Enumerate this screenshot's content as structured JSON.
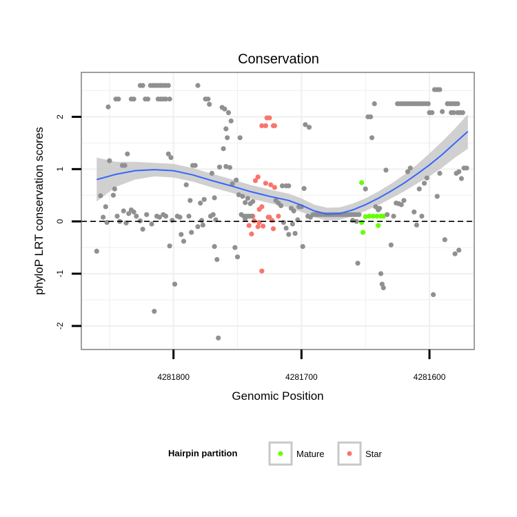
{
  "chart_data": {
    "type": "scatter",
    "title": "Conservation",
    "xlabel": "Genomic Position",
    "ylabel": "phyloP LRT conservation scores",
    "x_reversed": true,
    "xlim": [
      4281872,
      4281565
    ],
    "ylim": [
      -2.45,
      2.85
    ],
    "x_ticks": [
      4281800,
      4281700,
      4281600
    ],
    "x_tick_labels": [
      "4281800",
      "4281700",
      "4281600"
    ],
    "y_ticks": [
      -2,
      -1,
      0,
      1,
      2
    ],
    "y_tick_labels": [
      "-2",
      "-1",
      "0",
      "1",
      "2"
    ],
    "reference_line": {
      "y": 0,
      "style": "dashed"
    },
    "legend": {
      "title": "Hairpin partition",
      "position": "bottom",
      "entries": [
        {
          "name": "Mature",
          "color": "#66ff00"
        },
        {
          "name": "Star",
          "color": "#f8766d"
        }
      ]
    },
    "colors": {
      "other": "#909090",
      "Mature": "#66ff00",
      "Star": "#f8766d",
      "smooth_line": "#3366ff",
      "smooth_band": "#c8c8c8",
      "panel_background": "#ffffff",
      "grid": "#f0f0f0",
      "frame": "#7f7f7f"
    },
    "smooth": {
      "x": [
        4281860,
        4281845,
        4281830,
        4281815,
        4281800,
        4281785,
        4281770,
        4281755,
        4281740,
        4281725,
        4281710,
        4281700,
        4281690,
        4281680,
        4281670,
        4281660,
        4281650,
        4281640,
        4281630,
        4281620,
        4281610,
        4281600,
        4281590,
        4281580,
        4281570
      ],
      "y": [
        0.8,
        0.9,
        0.97,
        0.99,
        0.97,
        0.89,
        0.78,
        0.68,
        0.57,
        0.48,
        0.4,
        0.31,
        0.2,
        0.14,
        0.15,
        0.22,
        0.32,
        0.44,
        0.58,
        0.73,
        0.9,
        1.08,
        1.28,
        1.5,
        1.72
      ],
      "upper": [
        1.22,
        1.14,
        1.14,
        1.12,
        1.1,
        1.02,
        0.91,
        0.81,
        0.7,
        0.61,
        0.53,
        0.44,
        0.32,
        0.26,
        0.27,
        0.34,
        0.44,
        0.57,
        0.72,
        0.89,
        1.08,
        1.3,
        1.53,
        1.78,
        2.05
      ],
      "lower": [
        0.38,
        0.66,
        0.8,
        0.86,
        0.84,
        0.76,
        0.65,
        0.55,
        0.44,
        0.35,
        0.27,
        0.18,
        0.08,
        0.02,
        0.03,
        0.1,
        0.2,
        0.31,
        0.44,
        0.57,
        0.72,
        0.86,
        1.03,
        1.22,
        1.39
      ]
    },
    "series": [
      {
        "name": "Mature",
        "points": [
          [
            4281653,
            0.74
          ],
          [
            4281653,
            -0.02
          ],
          [
            4281652,
            -0.21
          ],
          [
            4281650,
            0.09
          ],
          [
            4281647,
            0.1
          ],
          [
            4281644,
            0.1
          ],
          [
            4281641,
            0.1
          ],
          [
            4281638,
            0.1
          ],
          [
            4281636,
            0.1
          ],
          [
            4281640,
            -0.08
          ]
        ]
      },
      {
        "name": "Star",
        "points": [
          [
            4281731,
            1.83
          ],
          [
            4281728,
            1.83
          ],
          [
            4281727,
            1.98
          ],
          [
            4281725,
            1.98
          ],
          [
            4281722,
            1.83
          ],
          [
            4281721,
            1.83
          ],
          [
            4281728,
            0.73
          ],
          [
            4281724,
            0.7
          ],
          [
            4281721,
            0.65
          ],
          [
            4281734,
            0.85
          ],
          [
            4281736,
            0.78
          ],
          [
            4281731,
            0.28
          ],
          [
            4281733,
            0.23
          ],
          [
            4281738,
            0.1
          ],
          [
            4281726,
            0.08
          ],
          [
            4281737,
            0.01
          ],
          [
            4281734,
            -0.1
          ],
          [
            4281741,
            -0.08
          ],
          [
            4281739,
            -0.24
          ],
          [
            4281730,
            -0.09
          ],
          [
            4281733,
            -0.02
          ],
          [
            4281723,
            0.02
          ],
          [
            4281725,
            0.08
          ],
          [
            4281722,
            -0.14
          ],
          [
            4281731,
            -0.95
          ],
          [
            4281718,
            0.1
          ]
        ]
      },
      {
        "name": "",
        "points": [
          [
            4281860,
            -0.57
          ],
          [
            4281857,
            0.49
          ],
          [
            4281855,
            0.08
          ],
          [
            4281853,
            0.28
          ],
          [
            4281852,
            -0.02
          ],
          [
            4281850,
            1.16
          ],
          [
            4281851,
            2.19
          ],
          [
            4281847,
            0.5
          ],
          [
            4281845,
            2.34
          ],
          [
            4281843,
            2.34
          ],
          [
            4281846,
            0.62
          ],
          [
            4281844,
            0.1
          ],
          [
            4281842,
            0.0
          ],
          [
            4281840,
            1.07
          ],
          [
            4281838,
            1.07
          ],
          [
            4281836,
            1.29
          ],
          [
            4281839,
            0.2
          ],
          [
            4281837,
            -0.03
          ],
          [
            4281835,
            0.15
          ],
          [
            4281833,
            2.34
          ],
          [
            4281831,
            2.34
          ],
          [
            4281833,
            0.22
          ],
          [
            4281831,
            0.18
          ],
          [
            4281829,
            0.1
          ],
          [
            4281826,
            2.6
          ],
          [
            4281824,
            2.6
          ],
          [
            4281822,
            2.34
          ],
          [
            4281820,
            2.34
          ],
          [
            4281826,
            0.01
          ],
          [
            4281824,
            -0.15
          ],
          [
            4281821,
            0.13
          ],
          [
            4281818,
            2.6
          ],
          [
            4281816,
            2.6
          ],
          [
            4281814,
            2.6
          ],
          [
            4281812,
            2.6
          ],
          [
            4281810,
            2.6
          ],
          [
            4281808,
            2.6
          ],
          [
            4281806,
            2.6
          ],
          [
            4281804,
            2.6
          ],
          [
            4281812,
            2.34
          ],
          [
            4281810,
            2.34
          ],
          [
            4281808,
            2.34
          ],
          [
            4281806,
            2.34
          ],
          [
            4281803,
            2.34
          ],
          [
            4281817,
            -0.05
          ],
          [
            4281815,
            -1.72
          ],
          [
            4281813,
            0.1
          ],
          [
            4281811,
            0.08
          ],
          [
            4281808,
            0.13
          ],
          [
            4281806,
            0.1
          ],
          [
            4281804,
            1.29
          ],
          [
            4281802,
            1.22
          ],
          [
            4281803,
            -0.47
          ],
          [
            4281801,
            0.02
          ],
          [
            4281799,
            -1.2
          ],
          [
            4281797,
            0.1
          ],
          [
            4281795,
            0.08
          ],
          [
            4281794,
            -0.25
          ],
          [
            4281792,
            -0.38
          ],
          [
            4281790,
            0.7
          ],
          [
            4281788,
            0.1
          ],
          [
            4281787,
            0.4
          ],
          [
            4281786,
            -0.21
          ],
          [
            4281785,
            1.07
          ],
          [
            4281783,
            1.07
          ],
          [
            4281781,
            -0.1
          ],
          [
            4281781,
            2.6
          ],
          [
            4281779,
            0.35
          ],
          [
            4281778,
            0.02
          ],
          [
            4281777,
            -0.07
          ],
          [
            4281776,
            0.42
          ],
          [
            4281775,
            2.34
          ],
          [
            4281773,
            2.34
          ],
          [
            4281772,
            2.24
          ],
          [
            4281771,
            0.1
          ],
          [
            4281769,
            0.13
          ],
          [
            4281770,
            0.92
          ],
          [
            4281768,
            0.45
          ],
          [
            4281767,
            0.03
          ],
          [
            4281768,
            -0.48
          ],
          [
            4281766,
            -0.73
          ],
          [
            4281765,
            -2.23
          ],
          [
            4281764,
            1.04
          ],
          [
            4281762,
            2.18
          ],
          [
            4281760,
            2.15
          ],
          [
            4281759,
            1.77
          ],
          [
            4281758,
            1.6
          ],
          [
            4281757,
            2.08
          ],
          [
            4281755,
            1.92
          ],
          [
            4281761,
            1.39
          ],
          [
            4281759,
            1.05
          ],
          [
            4281756,
            1.03
          ],
          [
            4281754,
            0.72
          ],
          [
            4281751,
            0.79
          ],
          [
            4281749,
            0.51
          ],
          [
            4281752,
            -0.5
          ],
          [
            4281750,
            -0.68
          ],
          [
            4281748,
            1.6
          ],
          [
            4281747,
            0.13
          ],
          [
            4281745,
            0.1
          ],
          [
            4281743,
            0.1
          ],
          [
            4281741,
            0.1
          ],
          [
            4281739,
            0.1
          ],
          [
            4281744,
            0.05
          ],
          [
            4281742,
            0.44
          ],
          [
            4281740,
            0.34
          ],
          [
            4281738,
            0.38
          ],
          [
            4281746,
            0.48
          ],
          [
            4281744,
            0.36
          ],
          [
            4281720,
            0.4
          ],
          [
            4281718,
            0.35
          ],
          [
            4281716,
            0.3
          ],
          [
            4281715,
            0.68
          ],
          [
            4281712,
            0.68
          ],
          [
            4281710,
            0.68
          ],
          [
            4281714,
            -0.02
          ],
          [
            4281712,
            -0.13
          ],
          [
            4281710,
            -0.25
          ],
          [
            4281708,
            0.25
          ],
          [
            4281706,
            0.2
          ],
          [
            4281707,
            -0.05
          ],
          [
            4281705,
            -0.23
          ],
          [
            4281703,
            0.03
          ],
          [
            4281702,
            0.28
          ],
          [
            4281700,
            0.28
          ],
          [
            4281699,
            -0.48
          ],
          [
            4281698,
            0.63
          ],
          [
            4281697,
            1.85
          ],
          [
            4281694,
            1.8
          ],
          [
            4281695,
            0.1
          ],
          [
            4281693,
            0.08
          ],
          [
            4281691,
            0.13
          ],
          [
            4281689,
            0.13
          ],
          [
            4281687,
            0.13
          ],
          [
            4281685,
            0.13
          ],
          [
            4281683,
            0.13
          ],
          [
            4281681,
            0.13
          ],
          [
            4281679,
            0.13
          ],
          [
            4281677,
            0.13
          ],
          [
            4281675,
            0.13
          ],
          [
            4281673,
            0.13
          ],
          [
            4281671,
            0.13
          ],
          [
            4281669,
            0.13
          ],
          [
            4281667,
            0.13
          ],
          [
            4281665,
            0.13
          ],
          [
            4281663,
            0.13
          ],
          [
            4281661,
            0.13
          ],
          [
            4281659,
            0.13
          ],
          [
            4281657,
            0.13
          ],
          [
            4281655,
            0.13
          ],
          [
            4281660,
            0.02
          ],
          [
            4281657,
            0.0
          ],
          [
            4281656,
            -0.8
          ],
          [
            4281650,
            0.62
          ],
          [
            4281648,
            2.0
          ],
          [
            4281646,
            2.0
          ],
          [
            4281645,
            1.6
          ],
          [
            4281643,
            2.25
          ],
          [
            4281642,
            0.28
          ],
          [
            4281640,
            0.22
          ],
          [
            4281639,
            0.25
          ],
          [
            4281638,
            -1.0
          ],
          [
            4281637,
            -1.2
          ],
          [
            4281636,
            -1.27
          ],
          [
            4281634,
            0.98
          ],
          [
            4281633,
            0.13
          ],
          [
            4281630,
            -0.45
          ],
          [
            4281628,
            0.1
          ],
          [
            4281626,
            0.35
          ],
          [
            4281624,
            0.34
          ],
          [
            4281622,
            0.32
          ],
          [
            4281620,
            0.4
          ],
          [
            4281617,
            0.95
          ],
          [
            4281615,
            1.02
          ],
          [
            4281625,
            2.25
          ],
          [
            4281623,
            2.25
          ],
          [
            4281621,
            2.25
          ],
          [
            4281619,
            2.25
          ],
          [
            4281617,
            2.25
          ],
          [
            4281615,
            2.25
          ],
          [
            4281613,
            2.25
          ],
          [
            4281611,
            2.25
          ],
          [
            4281609,
            2.25
          ],
          [
            4281607,
            2.25
          ],
          [
            4281605,
            2.25
          ],
          [
            4281603,
            2.25
          ],
          [
            4281601,
            2.25
          ],
          [
            4281612,
            0.18
          ],
          [
            4281610,
            -0.07
          ],
          [
            4281608,
            0.62
          ],
          [
            4281606,
            0.1
          ],
          [
            4281604,
            0.73
          ],
          [
            4281602,
            0.83
          ],
          [
            4281600,
            2.08
          ],
          [
            4281598,
            2.08
          ],
          [
            4281596,
            2.52
          ],
          [
            4281594,
            2.52
          ],
          [
            4281592,
            2.52
          ],
          [
            4281590,
            2.1
          ],
          [
            4281597,
            -1.4
          ],
          [
            4281594,
            0.48
          ],
          [
            4281592,
            0.92
          ],
          [
            4281588,
            -0.35
          ],
          [
            4281586,
            2.25
          ],
          [
            4281584,
            2.25
          ],
          [
            4281582,
            2.25
          ],
          [
            4281580,
            2.25
          ],
          [
            4281578,
            2.25
          ],
          [
            4281583,
            2.08
          ],
          [
            4281581,
            2.08
          ],
          [
            4281578,
            2.08
          ],
          [
            4281576,
            2.08
          ],
          [
            4281574,
            2.08
          ],
          [
            4281579,
            0.92
          ],
          [
            4281577,
            0.95
          ],
          [
            4281580,
            -0.62
          ],
          [
            4281577,
            -0.55
          ],
          [
            4281575,
            0.82
          ],
          [
            4281573,
            1.02
          ],
          [
            4281571,
            1.02
          ]
        ]
      }
    ]
  }
}
